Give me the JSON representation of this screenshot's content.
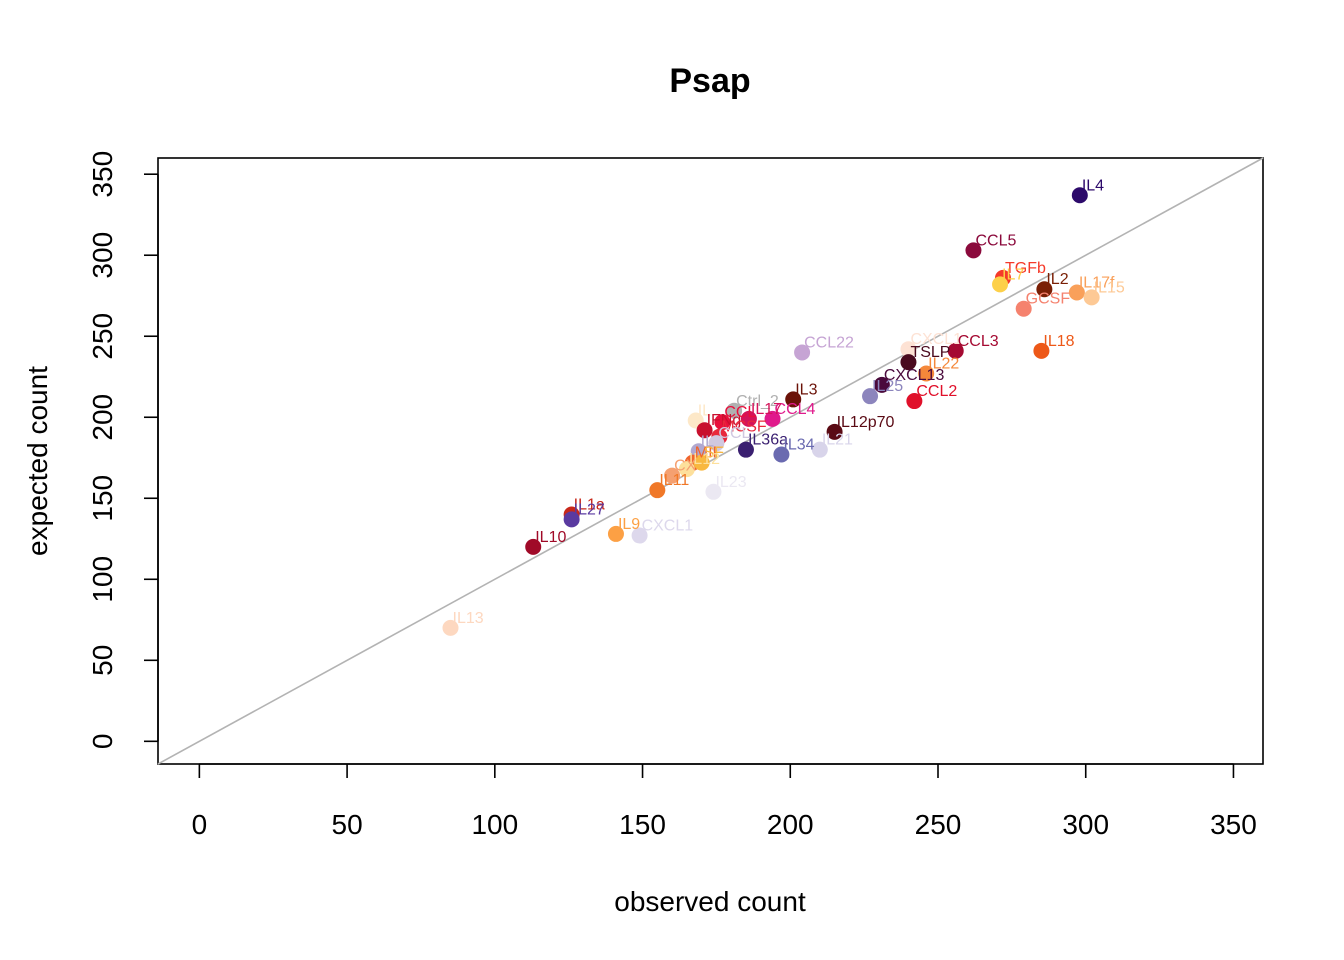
{
  "chart_data": {
    "type": "scatter",
    "title": "Psap",
    "xlabel": "observed count",
    "ylabel": "expected count",
    "xlim": [
      -14,
      360
    ],
    "ylim": [
      -14,
      360
    ],
    "xticks": [
      0,
      50,
      100,
      150,
      200,
      250,
      300,
      350
    ],
    "yticks": [
      0,
      50,
      100,
      150,
      200,
      250,
      300,
      350
    ],
    "reference_line": "y = x",
    "reference_line_color": "#b3b3b3",
    "points": [
      {
        "label": "IL4",
        "x": 298,
        "y": 337,
        "color": "#2d0a6b"
      },
      {
        "label": "CCL5",
        "x": 262,
        "y": 303,
        "color": "#8b0a3c"
      },
      {
        "label": "TGFb",
        "x": 272,
        "y": 286,
        "color": "#f53a2a"
      },
      {
        "label": "IL7",
        "x": 271,
        "y": 282,
        "color": "#fdd049"
      },
      {
        "label": "IL2",
        "x": 286,
        "y": 279,
        "color": "#7a1f05"
      },
      {
        "label": "IL17f",
        "x": 297,
        "y": 277,
        "color": "#f9a05a"
      },
      {
        "label": "IL15",
        "x": 302,
        "y": 274,
        "color": "#fdc995"
      },
      {
        "label": "GCSF",
        "x": 279,
        "y": 267,
        "color": "#f5826e"
      },
      {
        "label": "CCL22",
        "x": 204,
        "y": 240,
        "color": "#c6a4d4"
      },
      {
        "label": "CXCL1",
        "x": 240,
        "y": 242,
        "color": "#fde2d4"
      },
      {
        "label": "CCL3",
        "x": 256,
        "y": 241,
        "color": "#a50a32"
      },
      {
        "label": "IL18",
        "x": 285,
        "y": 241,
        "color": "#ed5818"
      },
      {
        "label": "TSLP",
        "x": 240,
        "y": 234,
        "color": "#4a0a1e"
      },
      {
        "label": "IL22",
        "x": 246,
        "y": 227,
        "color": "#f5883a"
      },
      {
        "label": "CXCL13",
        "x": 231,
        "y": 220,
        "color": "#4a0a3c"
      },
      {
        "label": "IL25",
        "x": 227,
        "y": 213,
        "color": "#8c85bd"
      },
      {
        "label": "IL3",
        "x": 201,
        "y": 211,
        "color": "#6b1208"
      },
      {
        "label": "CCL2",
        "x": 242,
        "y": 210,
        "color": "#e0102a"
      },
      {
        "label": "Ctrl_2",
        "x": 181,
        "y": 204,
        "color": "#b0b0b0"
      },
      {
        "label": "CCL4",
        "x": 194,
        "y": 199,
        "color": "#e01a8c"
      },
      {
        "label": "IL17",
        "x": 186,
        "y": 199,
        "color": "#d4145a"
      },
      {
        "label": "CCL",
        "x": 177,
        "y": 197,
        "color": "#e8103c"
      },
      {
        "label": "IL",
        "x": 168,
        "y": 198,
        "color": "#fde8c8"
      },
      {
        "label": "IFNg",
        "x": 171,
        "y": 192,
        "color": "#c8102e"
      },
      {
        "label": "MCSF",
        "x": 176,
        "y": 188,
        "color": "#e8283c"
      },
      {
        "label": "IL12p70",
        "x": 215,
        "y": 191,
        "color": "#5a0a14"
      },
      {
        "label": "IL21",
        "x": 210,
        "y": 180,
        "color": "#d8d4ea"
      },
      {
        "label": "IL36a",
        "x": 185,
        "y": 180,
        "color": "#3a1f70"
      },
      {
        "label": "IL34",
        "x": 197,
        "y": 177,
        "color": "#6a6ab0"
      },
      {
        "label": "CCL",
        "x": 175,
        "y": 184,
        "color": "#d0c8e0"
      },
      {
        "label": "IL",
        "x": 169,
        "y": 179,
        "color": "#b0a8d0"
      },
      {
        "label": "MIF",
        "x": 167,
        "y": 172,
        "color": "#f0642c"
      },
      {
        "label": "SF",
        "x": 170,
        "y": 172,
        "color": "#f8b840"
      },
      {
        "label": "IL12",
        "x": 165,
        "y": 168,
        "color": "#fde09c"
      },
      {
        "label": "CX",
        "x": 160,
        "y": 164,
        "color": "#f5a070"
      },
      {
        "label": "IL11",
        "x": 155,
        "y": 155,
        "color": "#f07828"
      },
      {
        "label": "IL23",
        "x": 174,
        "y": 154,
        "color": "#ebe8f2"
      },
      {
        "label": "IL1a",
        "x": 126,
        "y": 140,
        "color": "#c8281a"
      },
      {
        "label": "IL27",
        "x": 126,
        "y": 137,
        "color": "#5a3aa0"
      },
      {
        "label": "IL9",
        "x": 141,
        "y": 128,
        "color": "#fca044"
      },
      {
        "label": "CXCL1",
        "x": 149,
        "y": 127,
        "color": "#ddd8ec"
      },
      {
        "label": "IL10",
        "x": 113,
        "y": 120,
        "color": "#a00a28"
      },
      {
        "label": "IL13",
        "x": 85,
        "y": 70,
        "color": "#fdd8c0"
      }
    ]
  }
}
